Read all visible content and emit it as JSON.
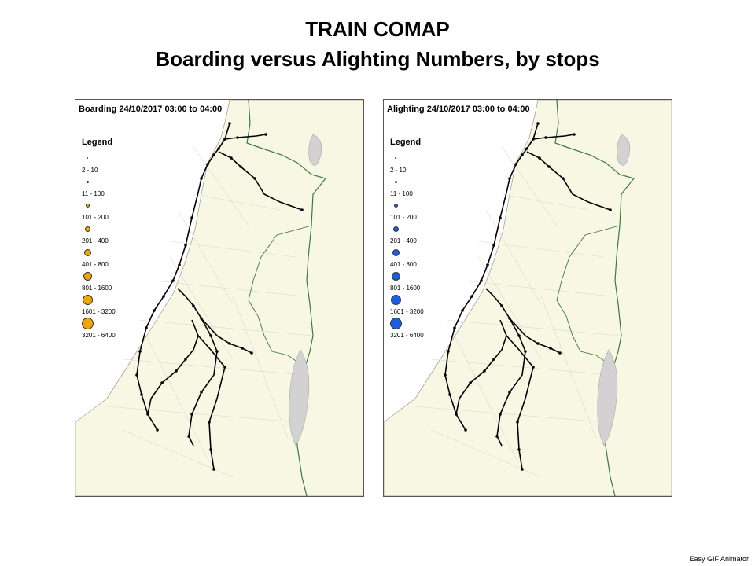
{
  "header": {
    "title": "TRAIN COMAP",
    "subtitle": "Boarding versus Alighting Numbers, by stops"
  },
  "maps": [
    {
      "id": "boarding",
      "title": "Boarding 24/10/2017 03:00 to 04:00",
      "dot_color": "#f0a500",
      "legend": {
        "heading": "Legend",
        "items": [
          "2 - 10",
          "11 - 100",
          "101 - 200",
          "201 - 400",
          "401 - 800",
          "801 - 1600",
          "1601 - 3200",
          "3201 - 6400"
        ]
      }
    },
    {
      "id": "alighting",
      "title": "Alighting 24/10/2017 03:00 to 04:00",
      "dot_color": "#1a5fe0",
      "legend": {
        "heading": "Legend",
        "items": [
          "2 - 10",
          "11 - 100",
          "101 - 200",
          "201 - 400",
          "401 - 800",
          "801 - 1600",
          "1601 - 3200",
          "3201 - 6400"
        ]
      }
    }
  ],
  "colors": {
    "land": "#f7f7e4",
    "sea": "#ffffff",
    "border": "#3a7a3a",
    "lake": "#d2d2d2",
    "rail": "#000000",
    "station": "#000000"
  },
  "footer": "Easy GIF Animator"
}
